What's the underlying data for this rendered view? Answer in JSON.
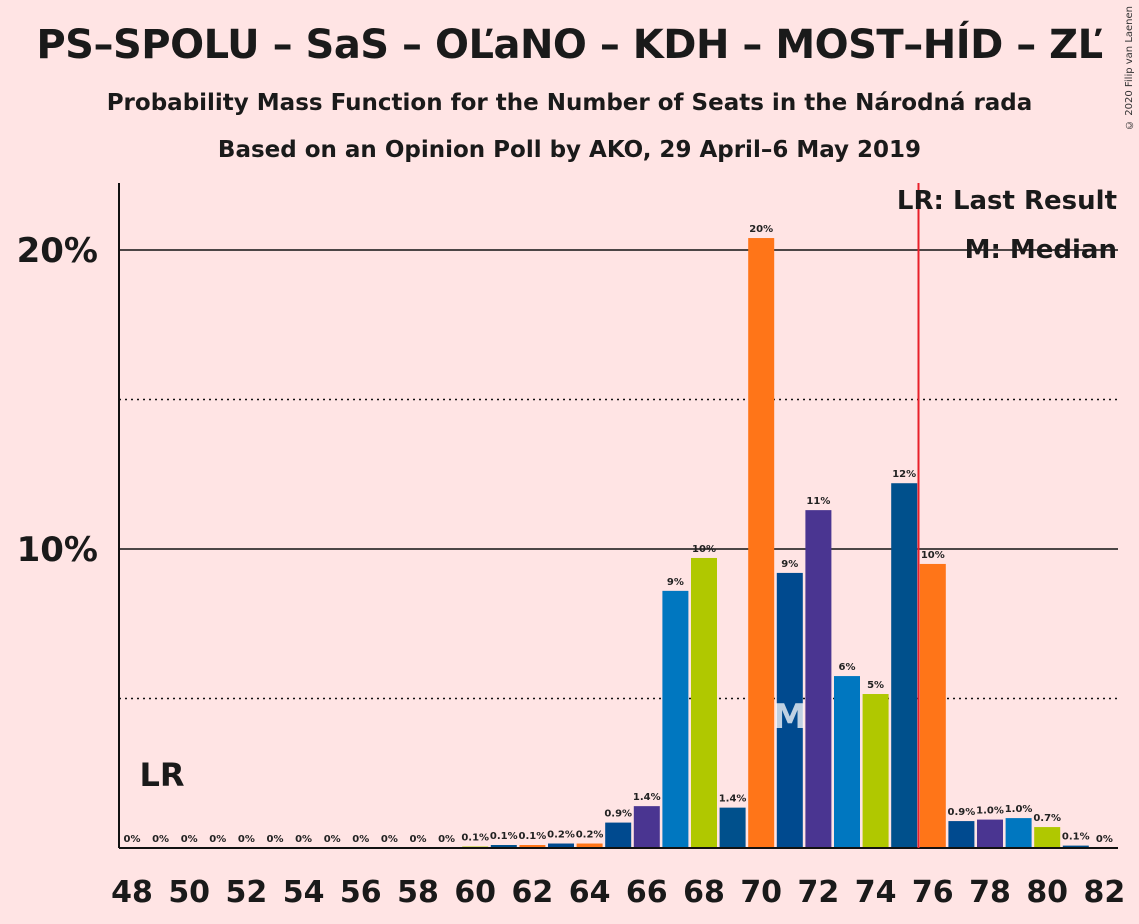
{
  "title": "PS–SPOLU – SaS – OĽaNO – KDH – MOST–HÍD – ZĽ",
  "subtitle": "Probability Mass Function for the Number of Seats in the Národná rada",
  "poll_line": "Based on an Opinion Poll by AKO, 29 April–6 May 2019",
  "copyright": "© 2020 Filip van Laenen",
  "legend": {
    "last_result": "LR: Last Result",
    "median": "M: Median"
  },
  "markers": {
    "lr_label": "LR",
    "median_label": "M",
    "last_result_x": 75.5,
    "median_x": 71
  },
  "colors": {
    "background": "#FFE4E4",
    "last_result_line": "#E8202A",
    "blue": "#0077C0",
    "lime": "#B0C800",
    "navy": "#004A8F",
    "orange": "#FF7518",
    "purple": "#4A3591",
    "steel": "#00508C"
  },
  "chart_data": {
    "type": "bar",
    "xlim": [
      48,
      82
    ],
    "ylim": [
      0,
      22
    ],
    "y_ticks": [
      10,
      20
    ],
    "y_tick_labels": [
      "10%",
      "20%"
    ],
    "dotted_gridlines": [
      5,
      15
    ],
    "x_ticks": [
      48,
      50,
      52,
      54,
      56,
      58,
      60,
      62,
      64,
      66,
      68,
      70,
      72,
      74,
      76,
      78,
      80,
      82
    ],
    "x_tick_labels": [
      "48",
      "50",
      "52",
      "54",
      "56",
      "58",
      "60",
      "62",
      "64",
      "66",
      "68",
      "70",
      "72",
      "74",
      "76",
      "78",
      "80",
      "82"
    ],
    "bars": [
      {
        "x": 48,
        "value": 0,
        "label": "0%",
        "color": "blue"
      },
      {
        "x": 49,
        "value": 0,
        "label": "0%",
        "color": "lime"
      },
      {
        "x": 50,
        "value": 0,
        "label": "0%",
        "color": "navy"
      },
      {
        "x": 51,
        "value": 0,
        "label": "0%",
        "color": "orange"
      },
      {
        "x": 52,
        "value": 0,
        "label": "0%",
        "color": "purple"
      },
      {
        "x": 53,
        "value": 0,
        "label": "0%",
        "color": "blue"
      },
      {
        "x": 54,
        "value": 0,
        "label": "0%",
        "color": "lime"
      },
      {
        "x": 55,
        "value": 0,
        "label": "0%",
        "color": "steel"
      },
      {
        "x": 56,
        "value": 0,
        "label": "0%",
        "color": "orange"
      },
      {
        "x": 57,
        "value": 0,
        "label": "0%",
        "color": "navy"
      },
      {
        "x": 58,
        "value": 0,
        "label": "0%",
        "color": "purple"
      },
      {
        "x": 59,
        "value": 0,
        "label": "0%",
        "color": "blue"
      },
      {
        "x": 60,
        "value": 0.05,
        "label": "0.1%",
        "color": "lime"
      },
      {
        "x": 61,
        "value": 0.1,
        "label": "0.1%",
        "color": "steel"
      },
      {
        "x": 62,
        "value": 0.1,
        "label": "0.1%",
        "color": "orange"
      },
      {
        "x": 63,
        "value": 0.15,
        "label": "0.2%",
        "color": "navy"
      },
      {
        "x": 64,
        "value": 0.15,
        "label": "0.2%",
        "color": "orange"
      },
      {
        "x": 65,
        "value": 0.85,
        "label": "0.9%",
        "color": "navy"
      },
      {
        "x": 66,
        "value": 1.4,
        "label": "1.4%",
        "color": "purple"
      },
      {
        "x": 67,
        "value": 8.6,
        "label": "9%",
        "color": "blue"
      },
      {
        "x": 68,
        "value": 9.7,
        "label": "10%",
        "color": "lime"
      },
      {
        "x": 69,
        "value": 1.35,
        "label": "1.4%",
        "color": "steel"
      },
      {
        "x": 70,
        "value": 20.4,
        "label": "20%",
        "color": "orange"
      },
      {
        "x": 71,
        "value": 9.2,
        "label": "9%",
        "color": "navy"
      },
      {
        "x": 72,
        "value": 11.3,
        "label": "11%",
        "color": "purple"
      },
      {
        "x": 73,
        "value": 5.75,
        "label": "6%",
        "color": "blue"
      },
      {
        "x": 74,
        "value": 5.15,
        "label": "5%",
        "color": "lime"
      },
      {
        "x": 75,
        "value": 12.2,
        "label": "12%",
        "color": "steel"
      },
      {
        "x": 76,
        "value": 9.5,
        "label": "10%",
        "color": "orange"
      },
      {
        "x": 77,
        "value": 0.9,
        "label": "0.9%",
        "color": "navy"
      },
      {
        "x": 78,
        "value": 0.95,
        "label": "1.0%",
        "color": "purple"
      },
      {
        "x": 79,
        "value": 1.0,
        "label": "1.0%",
        "color": "blue"
      },
      {
        "x": 80,
        "value": 0.7,
        "label": "0.7%",
        "color": "lime"
      },
      {
        "x": 81,
        "value": 0.08,
        "label": "0.1%",
        "color": "steel"
      },
      {
        "x": 82,
        "value": 0,
        "label": "0%",
        "color": "orange"
      }
    ]
  }
}
